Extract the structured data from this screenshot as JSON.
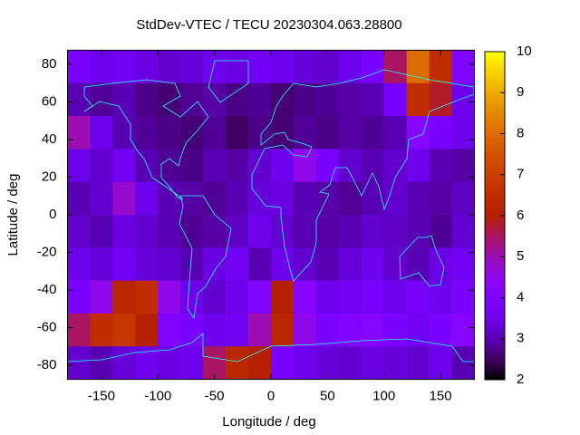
{
  "chart_data": {
    "type": "heatmap",
    "title": "StdDev-VTEC / TECU 20230304.063.28800",
    "xlabel": "Longitude / deg",
    "ylabel": "Latitude / deg",
    "xlim": [
      -180,
      180
    ],
    "ylim": [
      -87.5,
      87.5
    ],
    "xticks": [
      -150,
      -100,
      -50,
      0,
      50,
      100,
      150
    ],
    "yticks": [
      -80,
      -60,
      -40,
      -20,
      0,
      20,
      40,
      60,
      80
    ],
    "clim": [
      2,
      10
    ],
    "cticks": [
      2,
      3,
      4,
      5,
      6,
      7,
      8,
      9,
      10
    ],
    "colormap": "gnuplot",
    "x_edges": [
      -180,
      -160,
      -140,
      -120,
      -100,
      -80,
      -60,
      -40,
      -20,
      0,
      20,
      40,
      60,
      80,
      100,
      120,
      140,
      160,
      180
    ],
    "y_edges": [
      87.5,
      70,
      52.5,
      35,
      17.5,
      0,
      -17.5,
      -35,
      -52.5,
      -70,
      -87.5
    ],
    "z": [
      [
        3.8,
        3.5,
        3.6,
        3.4,
        3.2,
        3.3,
        3.5,
        3.4,
        3.6,
        3.5,
        3.3,
        3.2,
        3.5,
        3.8,
        5.5,
        8.0,
        6.5,
        4.0
      ],
      [
        3.0,
        2.8,
        3.0,
        2.7,
        2.6,
        2.8,
        2.9,
        2.7,
        2.8,
        2.6,
        2.7,
        2.8,
        2.9,
        3.0,
        3.8,
        6.5,
        5.8,
        3.5
      ],
      [
        5.0,
        3.5,
        3.0,
        2.8,
        2.7,
        2.6,
        2.8,
        2.5,
        2.7,
        2.6,
        2.8,
        2.7,
        2.9,
        2.8,
        3.0,
        4.2,
        3.8,
        3.5
      ],
      [
        3.5,
        3.2,
        3.6,
        3.0,
        2.8,
        2.7,
        3.0,
        2.9,
        3.2,
        3.5,
        4.5,
        3.8,
        3.2,
        3.0,
        3.2,
        3.5,
        3.0,
        2.9
      ],
      [
        3.0,
        3.2,
        4.8,
        3.5,
        3.0,
        2.9,
        2.8,
        3.0,
        3.3,
        3.4,
        3.0,
        2.9,
        2.8,
        3.0,
        3.2,
        3.0,
        2.9,
        3.1
      ],
      [
        3.2,
        3.0,
        3.4,
        3.2,
        3.0,
        2.8,
        2.9,
        3.1,
        3.5,
        3.2,
        3.0,
        2.9,
        3.0,
        3.2,
        3.1,
        3.0,
        2.8,
        3.2
      ],
      [
        3.5,
        3.3,
        3.6,
        3.3,
        3.2,
        3.0,
        3.4,
        3.6,
        3.0,
        3.5,
        3.2,
        3.0,
        3.3,
        3.5,
        3.2,
        3.0,
        3.4,
        3.6
      ],
      [
        3.8,
        4.5,
        6.2,
        6.5,
        4.5,
        3.5,
        3.2,
        3.5,
        4.0,
        6.0,
        4.2,
        3.5,
        3.6,
        3.8,
        3.5,
        3.7,
        3.5,
        3.8
      ],
      [
        5.5,
        6.5,
        6.8,
        6.0,
        4.0,
        3.8,
        3.5,
        3.6,
        5.0,
        6.2,
        4.5,
        3.8,
        4.0,
        4.2,
        3.8,
        3.6,
        3.8,
        4.2
      ],
      [
        3.2,
        3.0,
        3.3,
        3.5,
        3.4,
        3.5,
        5.5,
        6.3,
        6.0,
        3.8,
        3.5,
        3.3,
        3.2,
        3.4,
        3.3,
        3.2,
        3.5,
        3.0
      ]
    ]
  }
}
